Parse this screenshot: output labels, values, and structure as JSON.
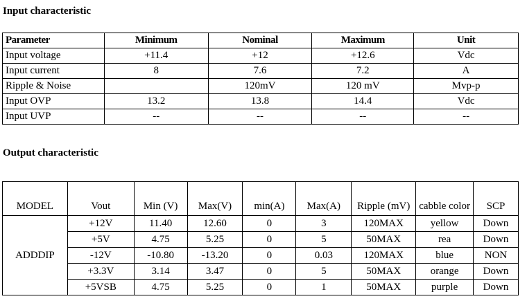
{
  "sections": [
    {
      "title": "Input characteristic",
      "table": {
        "header": [
          "Parameter",
          "Minimum",
          "Nominal",
          "Maximum",
          "Unit"
        ],
        "rows": [
          [
            "Input voltage",
            "+11.4",
            "+12",
            "+12.6",
            "Vdc"
          ],
          [
            "Input current",
            "8",
            "7.6",
            "7.2",
            "A"
          ],
          [
            "Ripple & Noise",
            null,
            "120mV",
            "120 mV",
            "Mvp-p"
          ],
          [
            "Input OVP",
            "13.2",
            "13.8",
            "14.4",
            "Vdc"
          ],
          [
            "Input UVP",
            "--",
            "--",
            "--",
            "--"
          ]
        ]
      }
    },
    {
      "title": "Output characteristic",
      "table": {
        "header": [
          "MODEL",
          "Vout",
          "Min (V)",
          "Max(V)",
          "min(A)",
          "Max(A)",
          "Ripple (mV)",
          "cabble color",
          "SCP"
        ],
        "model": "ADDDIP",
        "rows": [
          [
            "+12V",
            "11.40",
            "12.60",
            "0",
            "3",
            "120MAX",
            "yellow",
            "Down"
          ],
          [
            "+5V",
            "4.75",
            "5.25",
            "0",
            "5",
            "50MAX",
            "rea",
            "Down"
          ],
          [
            "-12V",
            "-10.80",
            "-13.20",
            "0",
            "0.03",
            "120MAX",
            "blue",
            "NON"
          ],
          [
            "+3.3V",
            "3.14",
            "3.47",
            "0",
            "5",
            "50MAX",
            "orange",
            "Down"
          ],
          [
            "+5VSB",
            "4.75",
            "5.25",
            "0",
            "1",
            "50MAX",
            "purple",
            "Down"
          ]
        ]
      }
    }
  ]
}
